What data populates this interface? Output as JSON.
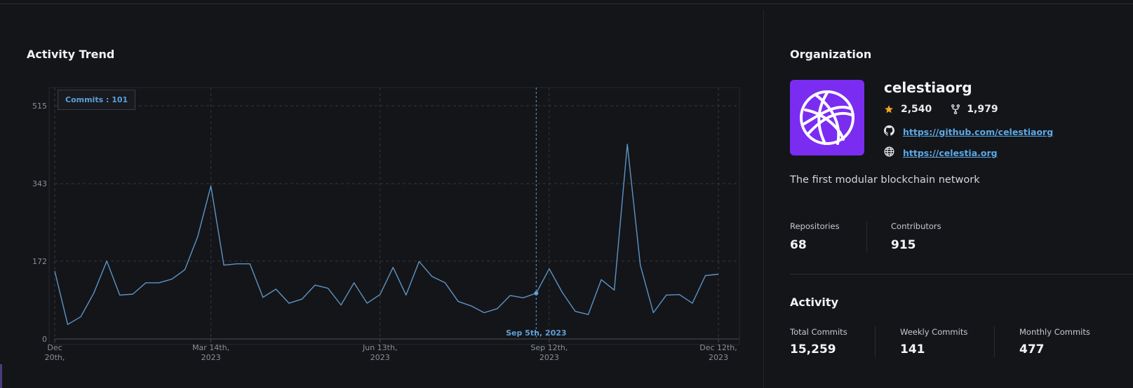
{
  "activity": {
    "title": "Activity Trend",
    "tooltip": "Commits : 101",
    "crosshair_label": "Sep 5th, 2023"
  },
  "chart_data": {
    "type": "line",
    "title": "Activity Trend",
    "xlabel": "",
    "ylabel": "",
    "ylim": [
      0,
      515
    ],
    "y_ticks": [
      "0",
      "172",
      "343",
      "515"
    ],
    "x_ticks": [
      {
        "label_line1": "Dec",
        "label_line2": "20th,",
        "date": "2022-12-20"
      },
      {
        "label_line1": "Mar 14th,",
        "label_line2": "2023",
        "date": "2023-03-14"
      },
      {
        "label_line1": "Jun 13th,",
        "label_line2": "2023",
        "date": "2023-06-13"
      },
      {
        "label_line1": "Sep 12th,",
        "label_line2": "2023",
        "date": "2023-09-12"
      },
      {
        "label_line1": "Dec 12th,",
        "label_line2": "2023",
        "date": "2023-12-12"
      }
    ],
    "grid": true,
    "highlight": {
      "date": "2023-09-05",
      "value": 101
    },
    "series": [
      {
        "color": "#5d94c4",
        "x": [
          "2022-12-20",
          "2022-12-27",
          "2023-01-03",
          "2023-01-10",
          "2023-01-17",
          "2023-01-24",
          "2023-01-31",
          "2023-02-07",
          "2023-02-14",
          "2023-02-21",
          "2023-02-28",
          "2023-03-07",
          "2023-03-14",
          "2023-03-21",
          "2023-03-28",
          "2023-04-04",
          "2023-04-11",
          "2023-04-18",
          "2023-04-25",
          "2023-05-02",
          "2023-05-09",
          "2023-05-16",
          "2023-05-23",
          "2023-05-30",
          "2023-06-06",
          "2023-06-13",
          "2023-06-20",
          "2023-06-27",
          "2023-07-04",
          "2023-07-11",
          "2023-07-18",
          "2023-07-25",
          "2023-08-01",
          "2023-08-08",
          "2023-08-15",
          "2023-08-22",
          "2023-08-29",
          "2023-09-05",
          "2023-09-12",
          "2023-09-19",
          "2023-09-26",
          "2023-10-03",
          "2023-10-10",
          "2023-10-17",
          "2023-10-24",
          "2023-10-31",
          "2023-11-07",
          "2023-11-14",
          "2023-11-21",
          "2023-11-28",
          "2023-12-05",
          "2023-12-12"
        ],
        "values": [
          150,
          32,
          49,
          101,
          172,
          97,
          99,
          124,
          124,
          132,
          153,
          227,
          338,
          163,
          166,
          166,
          92,
          110,
          79,
          88,
          119,
          112,
          75,
          124,
          79,
          98,
          158,
          97,
          171,
          138,
          124,
          83,
          73,
          58,
          67,
          96,
          91,
          101,
          155,
          103,
          61,
          54,
          131,
          108,
          430,
          163,
          58,
          97,
          98,
          79,
          140,
          143
        ]
      }
    ]
  },
  "organization": {
    "title": "Organization",
    "name": "celestiaorg",
    "stars": "2,540",
    "forks": "1,979",
    "github_url": "https://github.com/celestiaorg",
    "website_url": "https://celestia.org",
    "description": "The first modular blockchain network",
    "repositories_label": "Repositories",
    "repositories": "68",
    "contributors_label": "Contributors",
    "contributors": "915",
    "logo_color": "#7b2cf1",
    "star_color": "#f5a623"
  },
  "activity_stats": {
    "title": "Activity",
    "total_label": "Total Commits",
    "total": "15,259",
    "weekly_label": "Weekly Commits",
    "weekly": "141",
    "monthly_label": "Monthly Commits",
    "monthly": "477"
  },
  "icons": {
    "star": "star-icon",
    "fork": "fork-icon",
    "github": "github-icon",
    "globe": "globe-icon",
    "logo": "celestia-logo-icon"
  }
}
